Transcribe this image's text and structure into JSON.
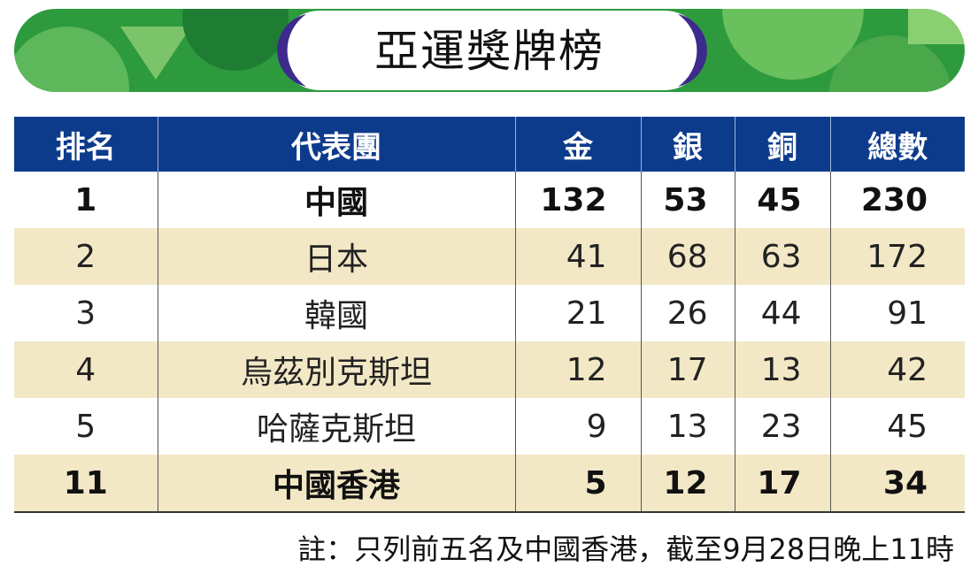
{
  "title": "亞運獎牌榜",
  "table": {
    "header": [
      "排名",
      "代表團",
      "金",
      "銀",
      "銅",
      "總數"
    ],
    "rows": [
      [
        "1",
        "中國",
        "132",
        "53",
        "45",
        "230"
      ],
      [
        "2",
        "日本",
        "41",
        "68",
        "63",
        "172"
      ],
      [
        "3",
        "韓國",
        "21",
        "26",
        "44",
        "91"
      ],
      [
        "4",
        "烏茲別克斯坦",
        "12",
        "17",
        "13",
        "42"
      ],
      [
        "5",
        "哈薩克斯坦",
        "9",
        "13",
        "23",
        "45"
      ],
      [
        "11",
        "中國香港",
        "5",
        "12",
        "17",
        "34"
      ]
    ]
  },
  "note": "註：只列前五名及中國香港，截至9月28日晚上11時"
}
